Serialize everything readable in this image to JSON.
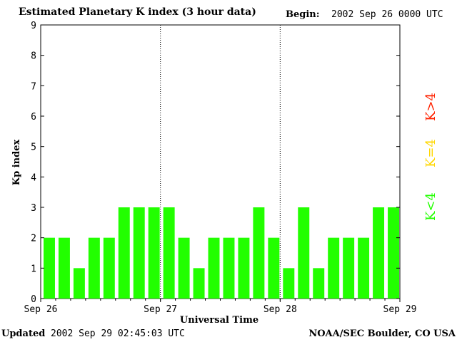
{
  "header": {
    "title": "Estimated Planetary K index (3 hour data)",
    "begin_label": "Begin:",
    "begin_value": "2002 Sep 26 0000 UTC"
  },
  "footer": {
    "updated_label": "Updated",
    "updated_value": "2002 Sep 29 02:45:03 UTC",
    "credit": "NOAA/SEC Boulder, CO USA"
  },
  "chart_data": {
    "type": "bar",
    "xlabel": "Universal Time",
    "ylabel": "Kp index",
    "ylim": [
      0,
      9
    ],
    "yticks": [
      0,
      1,
      2,
      3,
      4,
      5,
      6,
      7,
      8,
      9
    ],
    "xtick_labels": [
      "Sep 26",
      "Sep 27",
      "Sep 28",
      "Sep 29"
    ],
    "interval_hours": 3,
    "values": [
      2,
      2,
      1,
      2,
      2,
      3,
      3,
      3,
      3,
      2,
      1,
      2,
      2,
      2,
      3,
      2,
      1,
      3,
      1,
      2,
      2,
      2,
      3,
      3
    ],
    "bar_color": "#22ff00",
    "legend": [
      {
        "label": "K<4",
        "color": "#22ff00"
      },
      {
        "label": "K=4",
        "color": "#ffd700"
      },
      {
        "label": "K>4",
        "color": "#ff2200"
      }
    ]
  }
}
